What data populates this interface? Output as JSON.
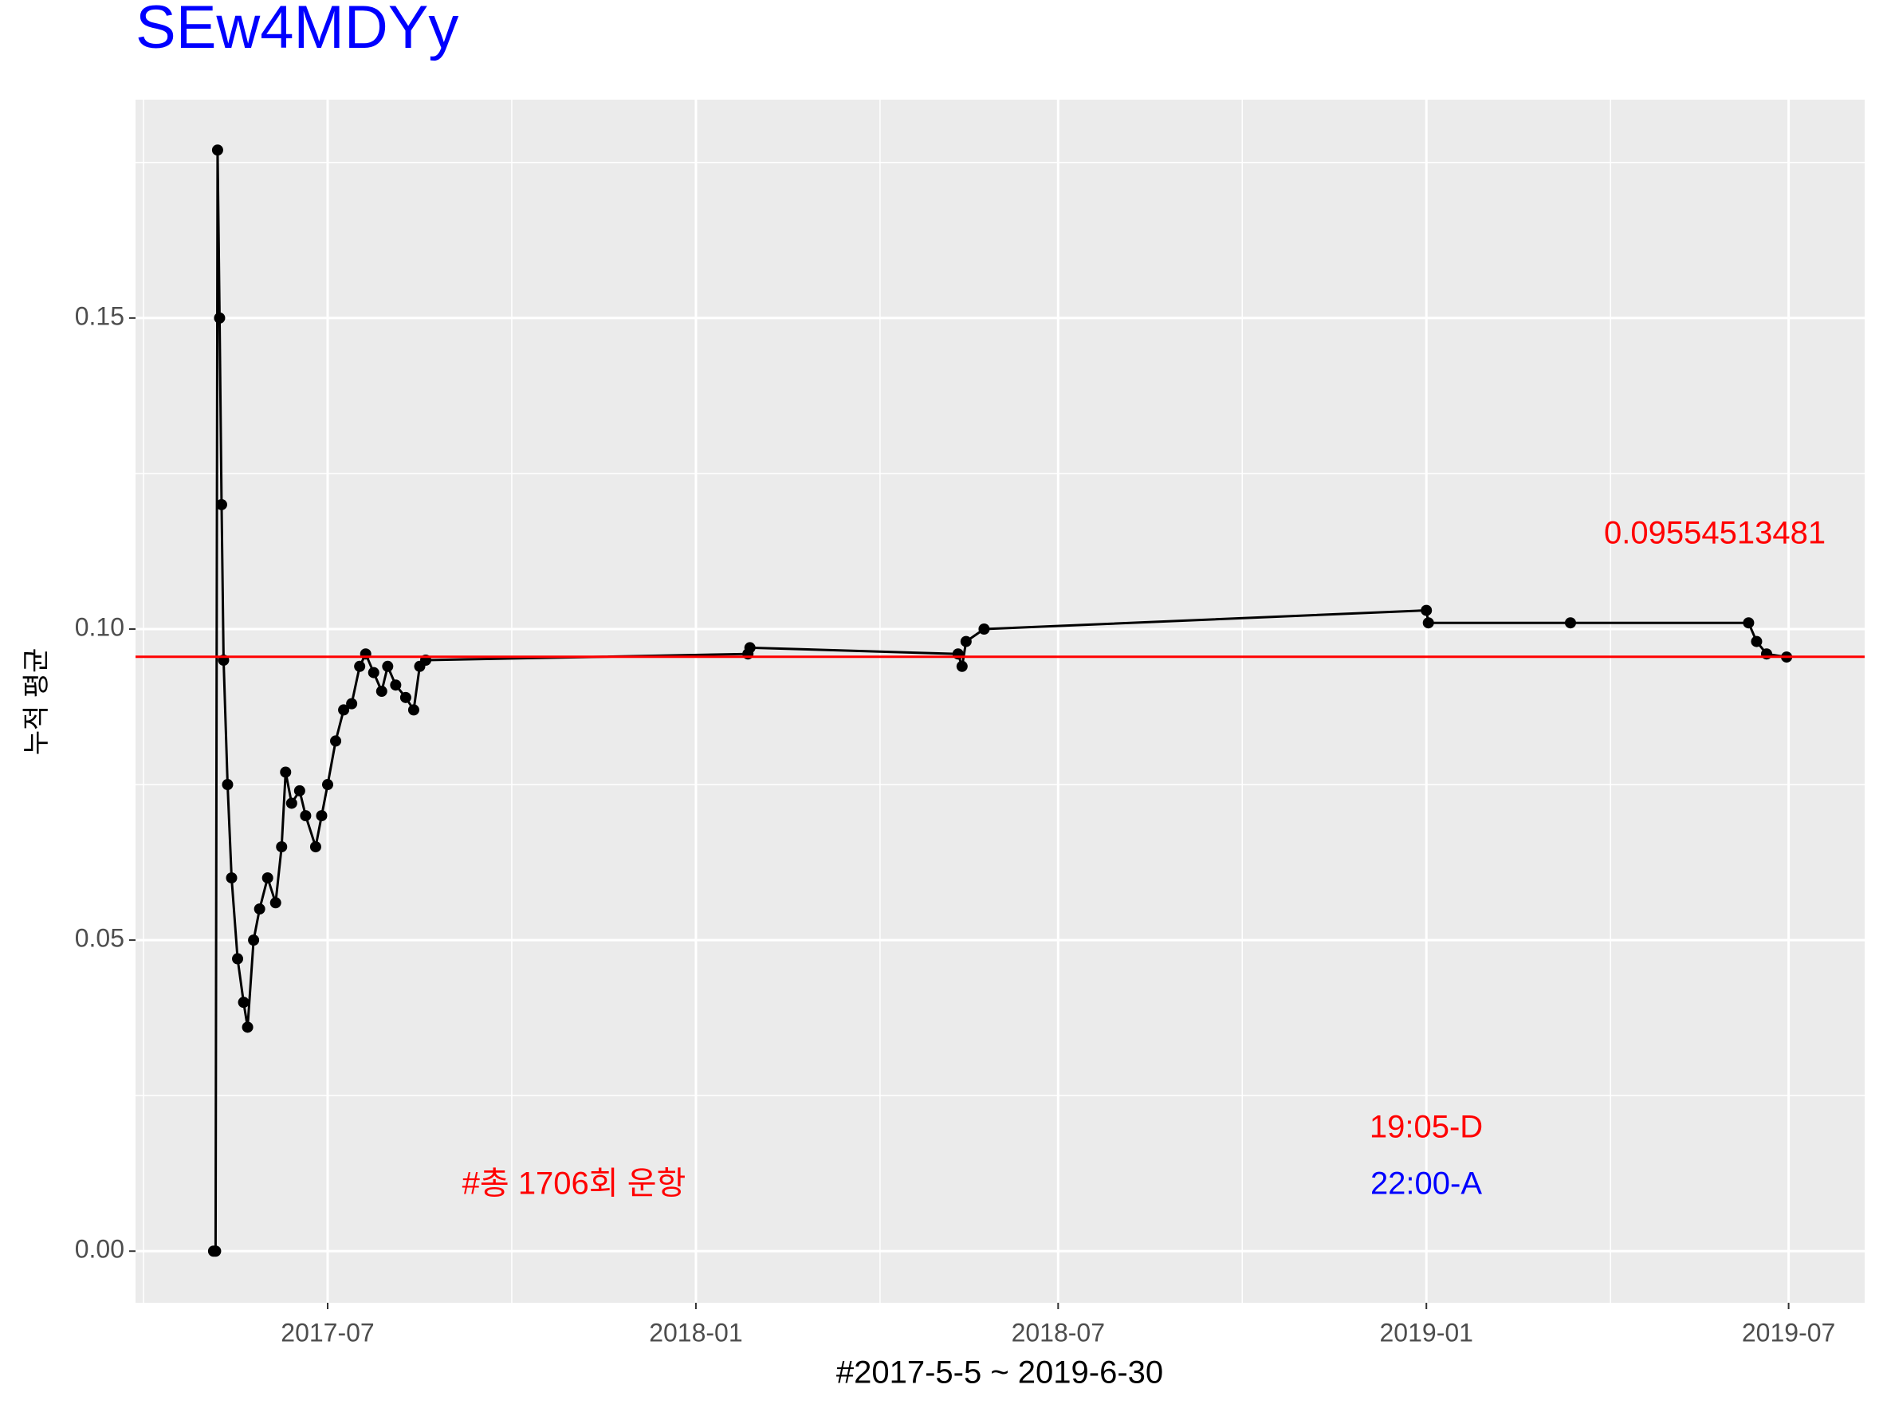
{
  "chart_data": {
    "type": "line",
    "title": "SEw4MDYy",
    "x_label": "#2017-5-5 ~ 2019-6-30",
    "y_label": "누적 평균",
    "annotations": [
      {
        "text": "0.09554513481",
        "color": "#ff0000"
      },
      {
        "text": "#총 1706회 운항",
        "color": "#ff0000"
      },
      {
        "text": "19:05-D",
        "color": "#ff0000"
      },
      {
        "text": "22:00-A",
        "color": "#0000ff"
      }
    ],
    "hline": {
      "value": 0.0955451348,
      "color": "#ff0000"
    },
    "x": [
      "2017-05-05",
      "2017-05-06",
      "2017-05-07",
      "2017-05-08",
      "2017-05-09",
      "2017-05-10",
      "2017-05-12",
      "2017-05-14",
      "2017-05-17",
      "2017-05-20",
      "2017-05-22",
      "2017-05-25",
      "2017-05-28",
      "2017-06-01",
      "2017-06-05",
      "2017-06-08",
      "2017-06-10",
      "2017-06-13",
      "2017-06-17",
      "2017-06-20",
      "2017-06-25",
      "2017-06-28",
      "2017-07-01",
      "2017-07-05",
      "2017-07-09",
      "2017-07-13",
      "2017-07-17",
      "2017-07-20",
      "2017-07-24",
      "2017-07-28",
      "2017-07-31",
      "2017-08-04",
      "2017-08-09",
      "2017-08-13",
      "2017-08-16",
      "2017-08-19",
      "2018-01-27",
      "2018-01-28",
      "2018-05-12",
      "2018-05-14",
      "2018-05-16",
      "2018-05-25",
      "2019-01-01",
      "2019-01-02",
      "2019-03-14",
      "2019-06-11",
      "2019-06-15",
      "2019-06-20",
      "2019-06-30"
    ],
    "series": [
      {
        "name": "누적 평균",
        "color": "#000000",
        "values": [
          0.0,
          0.0,
          0.177,
          0.15,
          0.12,
          0.095,
          0.075,
          0.06,
          0.047,
          0.04,
          0.036,
          0.05,
          0.055,
          0.06,
          0.056,
          0.065,
          0.077,
          0.072,
          0.074,
          0.07,
          0.065,
          0.07,
          0.075,
          0.082,
          0.087,
          0.088,
          0.094,
          0.096,
          0.093,
          0.09,
          0.094,
          0.091,
          0.089,
          0.087,
          0.094,
          0.095,
          0.096,
          0.097,
          0.096,
          0.094,
          0.098,
          0.1,
          0.103,
          0.101,
          0.101,
          0.101,
          0.098,
          0.096,
          0.0955
        ]
      }
    ],
    "xlim": [
      "2017-03-27",
      "2019-08-08"
    ],
    "xticks": [
      {
        "value": "2017-07-01",
        "label": "2017-07"
      },
      {
        "value": "2018-01-01",
        "label": "2018-01"
      },
      {
        "value": "2018-07-01",
        "label": "2018-07"
      },
      {
        "value": "2019-01-01",
        "label": "2019-01"
      },
      {
        "value": "2019-07-01",
        "label": "2019-07"
      }
    ],
    "ylim": [
      -0.0083,
      0.1851
    ],
    "yticks": [
      {
        "value": 0,
        "label": "0.00"
      },
      {
        "value": 0.05,
        "label": "0.05"
      },
      {
        "value": 0.1,
        "label": "0.10"
      },
      {
        "value": 0.15,
        "label": "0.15"
      }
    ],
    "grid": true
  }
}
